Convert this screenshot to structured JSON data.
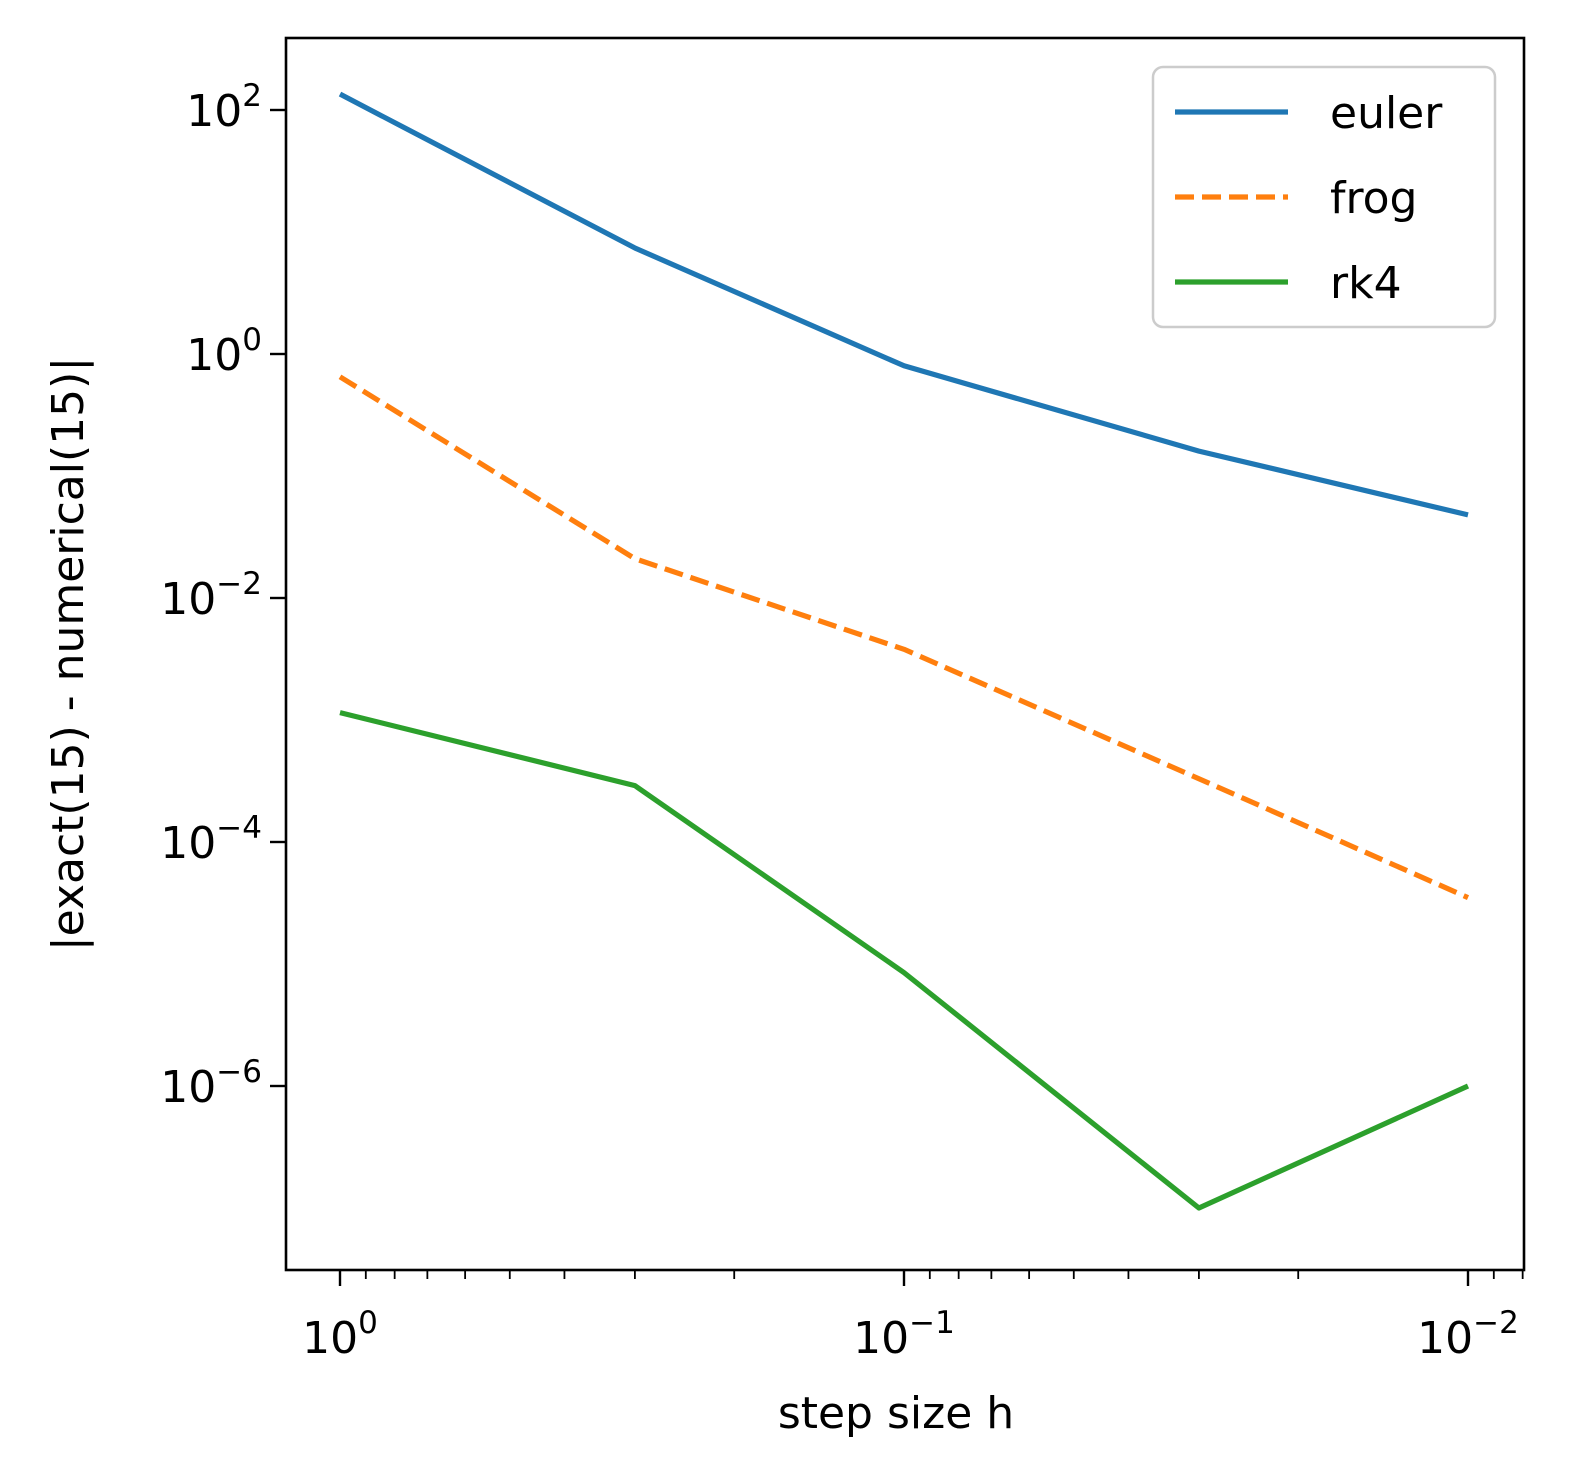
{
  "chart_data": {
    "type": "line",
    "title": "",
    "xlabel": "step size h",
    "ylabel": "|exact(15) - numerical(15)|",
    "x_scale": "log",
    "y_scale": "log",
    "x_reversed": true,
    "xlim": [
      1.25,
      0.0085
    ],
    "ylim": [
      3e-08,
      400
    ],
    "grid": false,
    "legend_position": "top-right",
    "x": [
      1,
      0.3,
      0.1,
      0.03,
      0.01
    ],
    "x_ticks": [
      {
        "value": 1,
        "base": "10",
        "exp": "0"
      },
      {
        "value": 0.1,
        "base": "10",
        "exp": "−1"
      },
      {
        "value": 0.01,
        "base": "10",
        "exp": "−2"
      }
    ],
    "y_ticks": [
      {
        "value": 100,
        "base": "10",
        "exp": "2"
      },
      {
        "value": 1,
        "base": "10",
        "exp": "0"
      },
      {
        "value": 0.01,
        "base": "10",
        "exp": "−2"
      },
      {
        "value": 0.0001,
        "base": "10",
        "exp": "−4"
      },
      {
        "value": 1e-06,
        "base": "10",
        "exp": "−6"
      }
    ],
    "series": [
      {
        "name": "euler",
        "color": "#1f77b4",
        "dash": "solid",
        "values": [
          135,
          7.4,
          0.8,
          0.16,
          0.048
        ]
      },
      {
        "name": "frog",
        "color": "#ff7f0e",
        "dash": "dashed",
        "values": [
          0.65,
          0.021,
          0.0038,
          0.00033,
          3.5e-05
        ]
      },
      {
        "name": "rk4",
        "color": "#2ca02c",
        "dash": "solid",
        "values": [
          0.00115,
          0.00029,
          8.5e-06,
          1e-07,
          1e-06
        ]
      }
    ]
  }
}
